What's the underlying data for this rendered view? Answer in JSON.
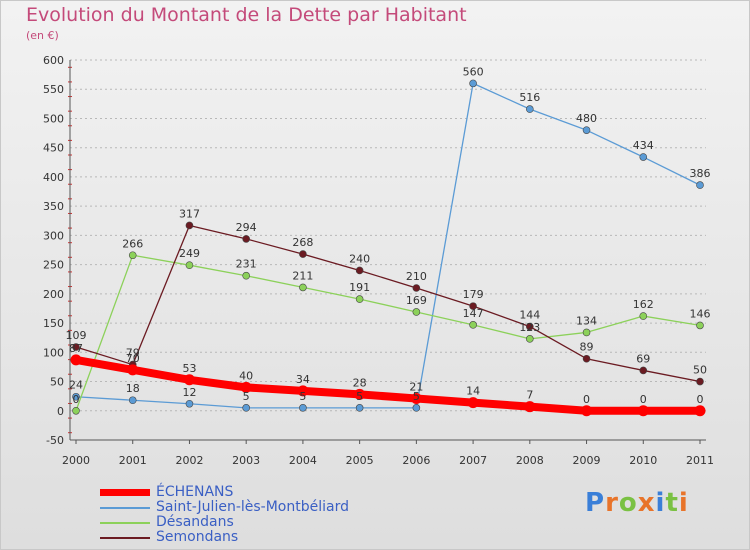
{
  "title": "Evolution du Montant de la Dette par Habitant",
  "subtitle": "(en €)",
  "logo": [
    "P",
    "r",
    "o",
    "x",
    "i",
    "t",
    "i"
  ],
  "colors": {
    "title": "#c44a7a",
    "legend_text": "#3a5fc4",
    "grid": "#b8b8b8",
    "logo": [
      "#3a7fd8",
      "#e8742a",
      "#7ac143",
      "#e8742a",
      "#3a7fd8",
      "#7ac143",
      "#e8742a"
    ]
  },
  "chart_data": {
    "type": "line",
    "x": [
      "2000",
      "2001",
      "2002",
      "2003",
      "2004",
      "2005",
      "2006",
      "2007",
      "2008",
      "2009",
      "2010",
      "2011"
    ],
    "ylim": [
      -50,
      600
    ],
    "yticks": [
      "-50",
      "0",
      "50",
      "100",
      "150",
      "200",
      "250",
      "300",
      "350",
      "400",
      "450",
      "500",
      "550",
      "600"
    ],
    "grid": "horizontal dashed",
    "legend_position": "bottom-left",
    "series": [
      {
        "name": "ÉCHENANS",
        "color": "#ff0000",
        "values": [
          87,
          70,
          53,
          40,
          34,
          28,
          21,
          14,
          7,
          0,
          0,
          0
        ],
        "labels": [
          "87",
          "70",
          "53",
          "40",
          "34",
          "28",
          "21",
          "14",
          "7",
          "0",
          "0",
          "0"
        ]
      },
      {
        "name": "Saint-Julien-lès-Montbéliard",
        "color": "#5b9bd5",
        "values": [
          24,
          18,
          12,
          5,
          5,
          5,
          5,
          560,
          516,
          480,
          434,
          386
        ],
        "labels": [
          "24",
          "18",
          "12",
          "5",
          "5",
          "5",
          "5",
          "560",
          "516",
          "480",
          "434",
          "386"
        ]
      },
      {
        "name": "Désandans",
        "color": "#8cd15a",
        "values": [
          0,
          266,
          249,
          231,
          211,
          191,
          169,
          147,
          123,
          134,
          162,
          146
        ],
        "labels": [
          "0",
          "266",
          "249",
          "231",
          "211",
          "191",
          "169",
          "147",
          "123",
          "134",
          "162",
          "146"
        ]
      },
      {
        "name": "Semondans",
        "color": "#6b1b22",
        "values": [
          109,
          79,
          317,
          294,
          268,
          240,
          210,
          179,
          144,
          89,
          69,
          50
        ],
        "labels": [
          "109",
          "79",
          "317",
          "294",
          "268",
          "240",
          "210",
          "179",
          "144",
          "89",
          "69",
          "50"
        ]
      }
    ]
  }
}
